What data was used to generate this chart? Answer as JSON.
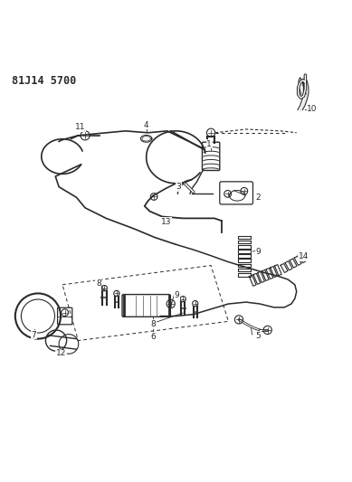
{
  "title": "81J14 5700",
  "bg_color": "#ffffff",
  "line_color": "#2a2a2a",
  "fig_width": 3.89,
  "fig_height": 5.33,
  "dpi": 100
}
